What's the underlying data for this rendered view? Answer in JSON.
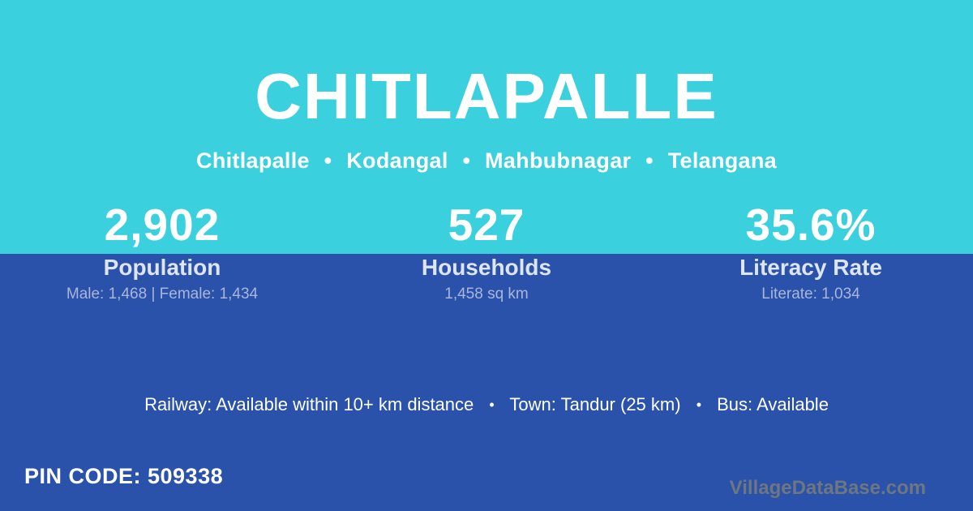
{
  "header": {
    "title": "CHITLAPALLE"
  },
  "breadcrumb": {
    "separator": "•",
    "items": [
      "Chitlapalle",
      "Kodangal",
      "Mahbubnagar",
      "Telangana"
    ]
  },
  "stats": [
    {
      "value": "2,902",
      "label": "Population",
      "detail": "Male: 1,468 | Female: 1,434"
    },
    {
      "value": "527",
      "label": "Households",
      "detail": "1,458 sq km"
    },
    {
      "value": "35.6%",
      "label": "Literacy Rate",
      "detail": "Literate: 1,034"
    }
  ],
  "transport": {
    "separator": "•",
    "segments": [
      "Railway: Available within 10+ km distance",
      "Town: Tandur (25 km)",
      "Bus: Available"
    ]
  },
  "pin_code": "PIN CODE: 509338",
  "watermark": "VillageDataBase.com",
  "colors": {
    "top_bg": "#3ad0dd",
    "bottom_bg": "#2a52ab",
    "text_primary": "#ffffff",
    "label_text": "#dde5f3",
    "detail_text": "#a9b6d9",
    "watermark_text": "#6e7780"
  }
}
